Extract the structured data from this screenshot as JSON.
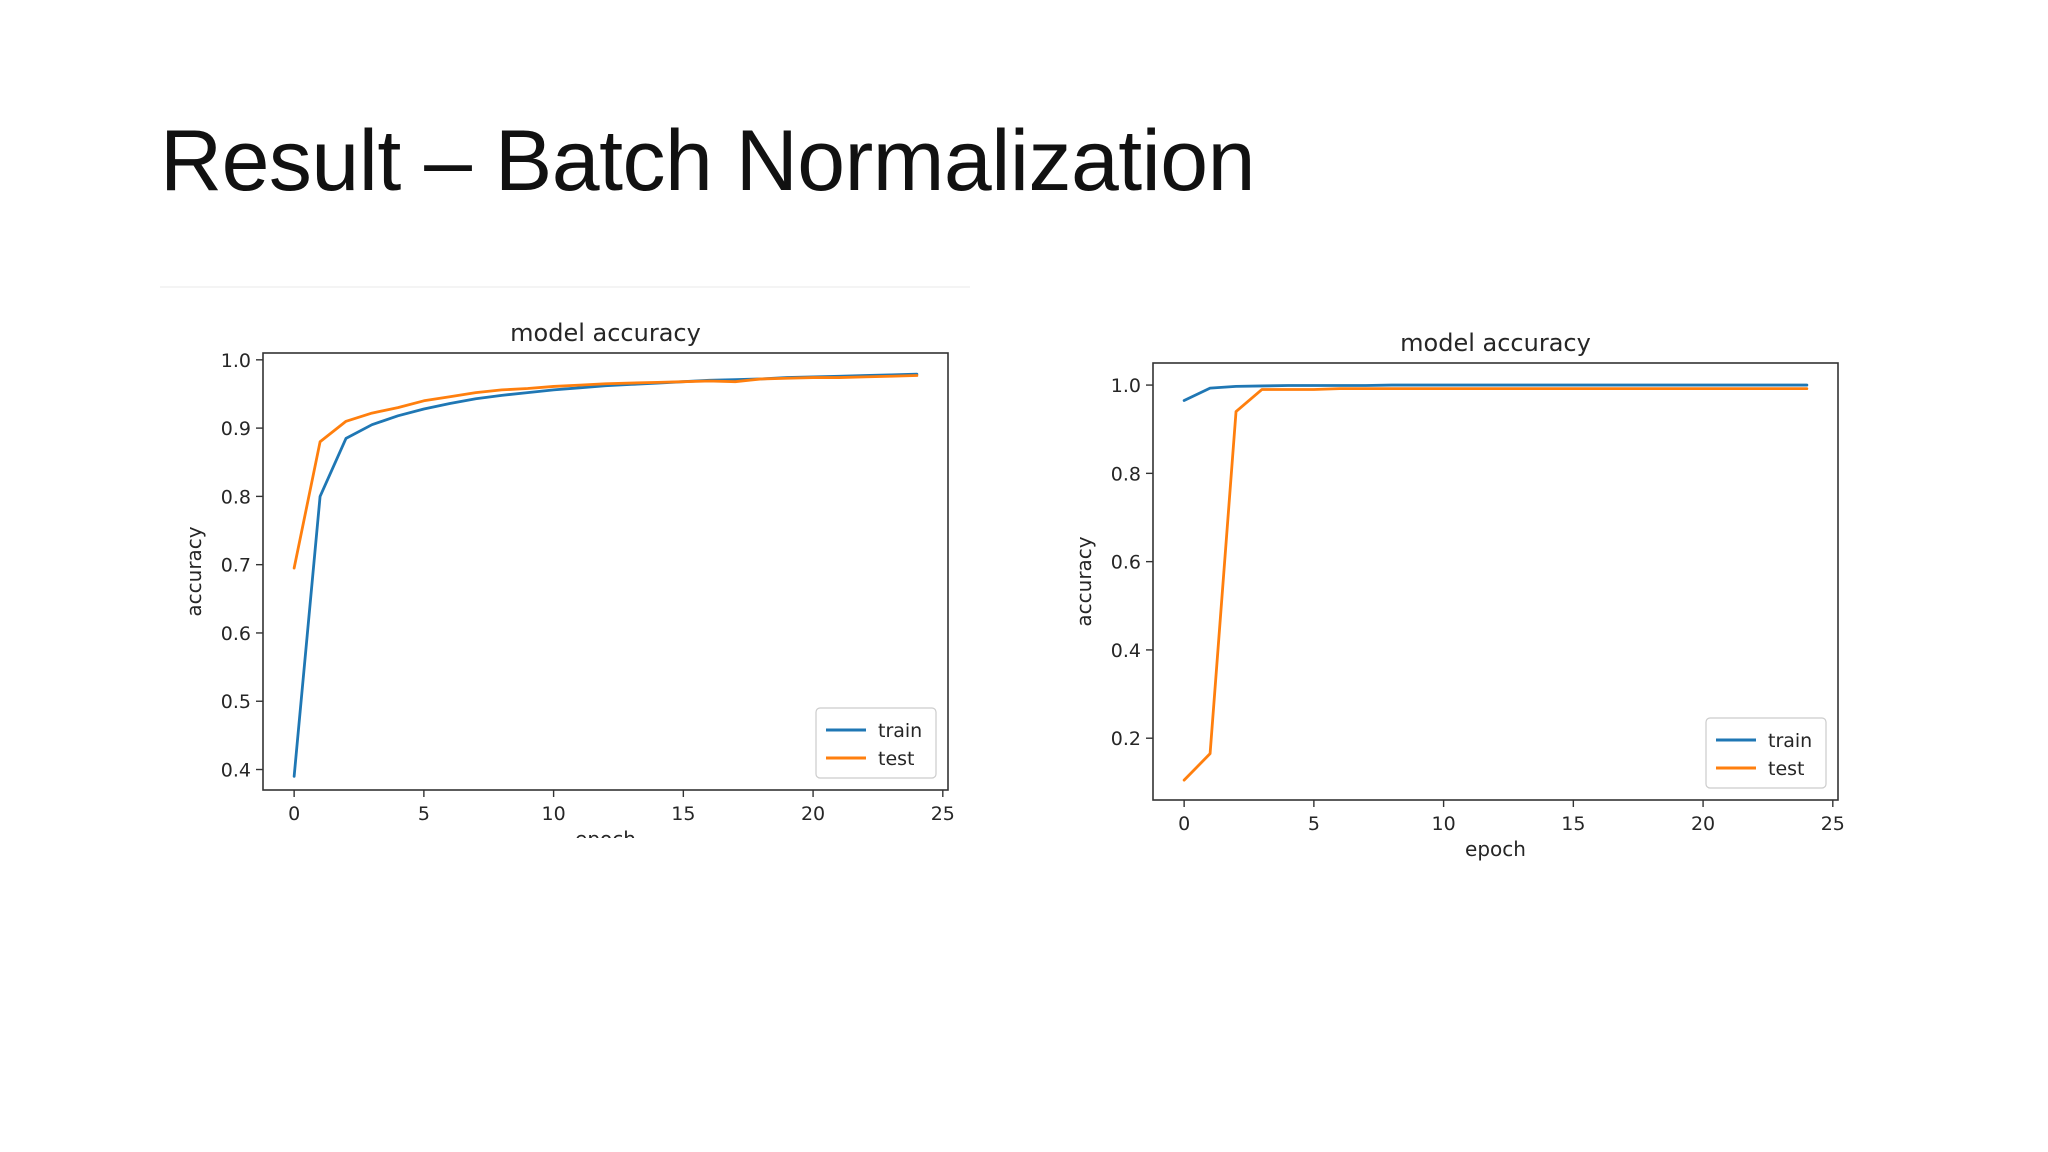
{
  "slide": {
    "title": "Result – Batch Normalization"
  },
  "colors": {
    "train": "#1f77b4",
    "test": "#ff7f0e",
    "axis": "#333333",
    "text": "#262626"
  },
  "chart_data": [
    {
      "type": "line",
      "title": "model accuracy",
      "xlabel": "epoch",
      "ylabel": "accuracy",
      "xlim": [
        -1.2,
        25.2
      ],
      "ylim": [
        0.37,
        1.01
      ],
      "xticks": [
        0,
        5,
        10,
        15,
        20,
        25
      ],
      "yticks": [
        0.4,
        0.5,
        0.6,
        0.7,
        0.8,
        0.9,
        1.0
      ],
      "ytick_labels": [
        "0.4",
        "0.5",
        "0.6",
        "0.7",
        "0.8",
        "0.9",
        "1.0"
      ],
      "legend_position": "lower-right",
      "x": [
        0,
        1,
        2,
        3,
        4,
        5,
        6,
        7,
        8,
        9,
        10,
        11,
        12,
        13,
        14,
        15,
        16,
        17,
        18,
        19,
        20,
        21,
        22,
        23,
        24
      ],
      "series": [
        {
          "name": "train",
          "color": "#1f77b4",
          "values": [
            0.39,
            0.8,
            0.885,
            0.905,
            0.918,
            0.928,
            0.936,
            0.943,
            0.948,
            0.952,
            0.956,
            0.959,
            0.962,
            0.964,
            0.966,
            0.968,
            0.97,
            0.971,
            0.972,
            0.974,
            0.975,
            0.976,
            0.977,
            0.978,
            0.979
          ]
        },
        {
          "name": "test",
          "color": "#ff7f0e",
          "values": [
            0.695,
            0.88,
            0.91,
            0.922,
            0.93,
            0.94,
            0.946,
            0.952,
            0.956,
            0.958,
            0.961,
            0.963,
            0.965,
            0.966,
            0.967,
            0.968,
            0.969,
            0.968,
            0.972,
            0.973,
            0.974,
            0.974,
            0.975,
            0.976,
            0.977
          ]
        }
      ]
    },
    {
      "type": "line",
      "title": "model accuracy",
      "xlabel": "epoch",
      "ylabel": "accuracy",
      "xlim": [
        -1.2,
        25.2
      ],
      "ylim": [
        0.06,
        1.05
      ],
      "xticks": [
        0,
        5,
        10,
        15,
        20,
        25
      ],
      "yticks": [
        0.2,
        0.4,
        0.6,
        0.8,
        1.0
      ],
      "ytick_labels": [
        "0.2",
        "0.4",
        "0.6",
        "0.8",
        "1.0"
      ],
      "legend_position": "lower-right",
      "x": [
        0,
        1,
        2,
        3,
        4,
        5,
        6,
        7,
        8,
        9,
        10,
        11,
        12,
        13,
        14,
        15,
        16,
        17,
        18,
        19,
        20,
        21,
        22,
        23,
        24
      ],
      "series": [
        {
          "name": "train",
          "color": "#1f77b4",
          "values": [
            0.965,
            0.993,
            0.997,
            0.998,
            0.999,
            0.999,
            0.999,
            0.999,
            1.0,
            1.0,
            1.0,
            1.0,
            1.0,
            1.0,
            1.0,
            1.0,
            1.0,
            1.0,
            1.0,
            1.0,
            1.0,
            1.0,
            1.0,
            1.0,
            1.0
          ]
        },
        {
          "name": "test",
          "color": "#ff7f0e",
          "values": [
            0.105,
            0.165,
            0.94,
            0.99,
            0.99,
            0.99,
            0.992,
            0.992,
            0.992,
            0.992,
            0.992,
            0.992,
            0.992,
            0.992,
            0.992,
            0.992,
            0.992,
            0.992,
            0.992,
            0.992,
            0.992,
            0.992,
            0.992,
            0.992,
            0.992
          ]
        }
      ]
    }
  ]
}
